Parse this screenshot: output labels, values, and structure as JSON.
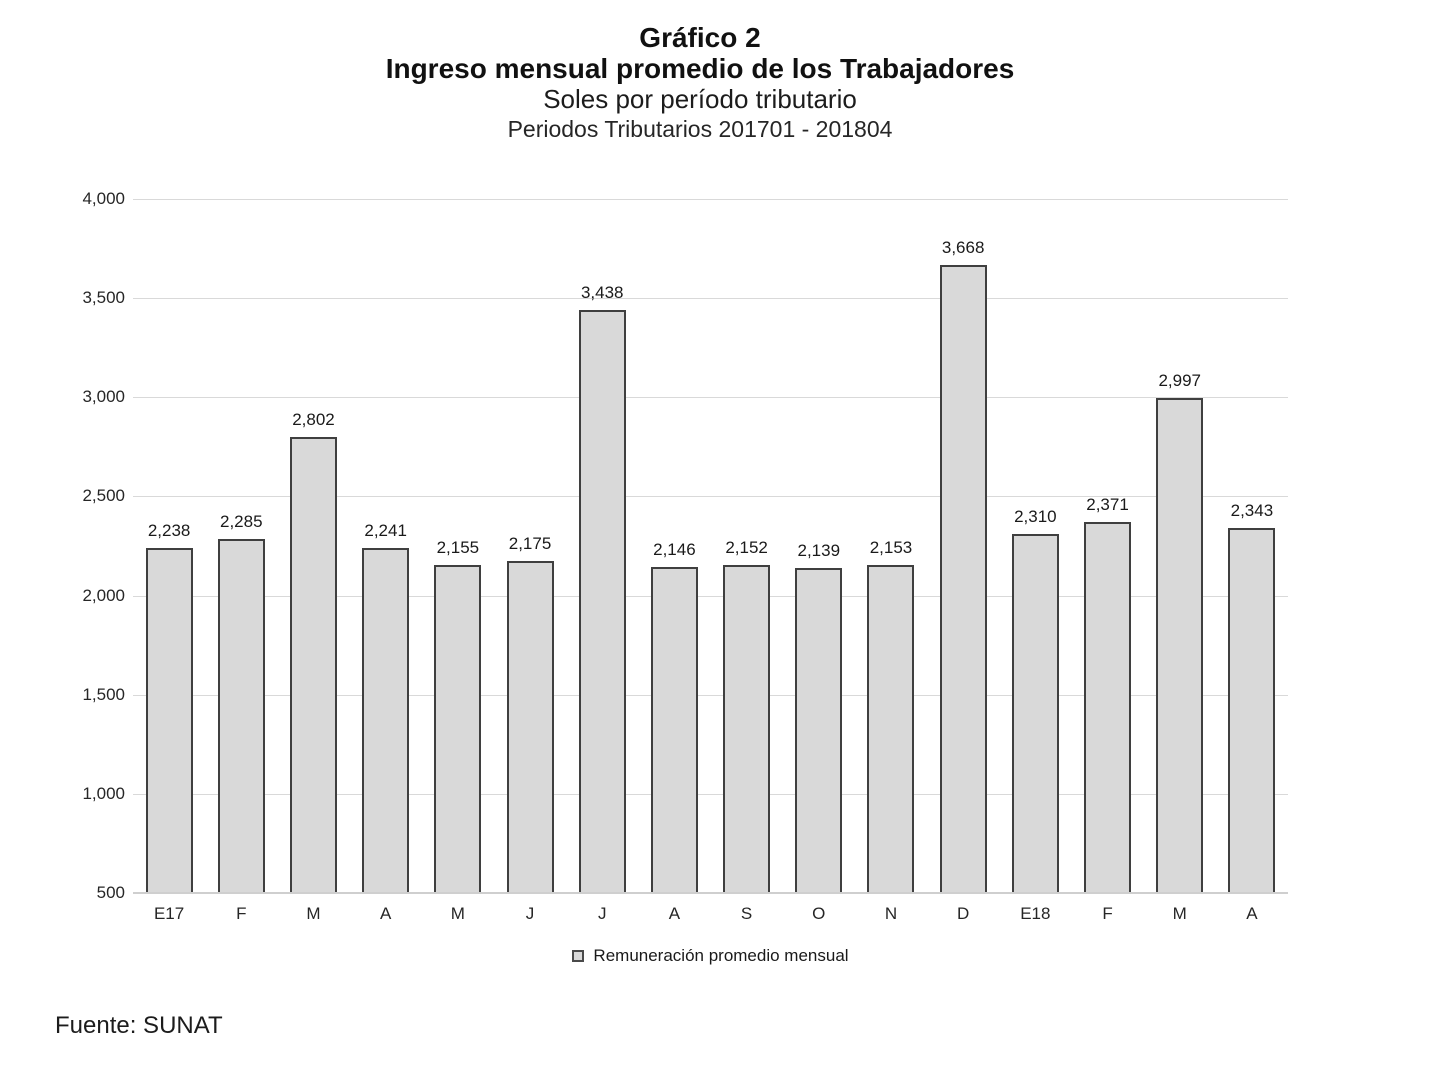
{
  "page": {
    "title_line1": "Gráfico 2",
    "title_line2": "Ingreso mensual promedio de los Trabajadores",
    "title_line3": "Soles por período tributario",
    "title_line4": "Periodos Tributarios 201701 - 201804",
    "source": "Fuente: SUNAT"
  },
  "chart_data": {
    "type": "bar",
    "title": "Gráfico 2 - Ingreso mensual promedio de los Trabajadores",
    "subtitle": "Soles por período tributario",
    "subtitle2": "Periodos Tributarios 201701 - 201804",
    "categories": [
      "E17",
      "F",
      "M",
      "A",
      "M",
      "J",
      "J",
      "A",
      "S",
      "O",
      "N",
      "D",
      "E18",
      "F",
      "M",
      "A"
    ],
    "series": [
      {
        "name": "Remuneración promedio mensual",
        "values": [
          2238,
          2285,
          2802,
          2241,
          2155,
          2175,
          3438,
          2146,
          2152,
          2139,
          2153,
          3668,
          2310,
          2371,
          2997,
          2343
        ]
      }
    ],
    "data_labels": true,
    "xlabel": "",
    "ylabel": "",
    "ylim": [
      500,
      4000
    ],
    "ytick_step": 500,
    "yticks": [
      500,
      1000,
      1500,
      2000,
      2500,
      3000,
      3500,
      4000
    ],
    "grid": true,
    "legend_position": "bottom",
    "legend_label": "Remuneración promedio mensual",
    "colors": {
      "bar_fill": "#d9d9d9",
      "bar_border": "#3f3f3f",
      "gridline": "#d9d9d9",
      "axis_line": "#cfcfcf",
      "text": "#262626"
    },
    "source": "Fuente: SUNAT"
  }
}
